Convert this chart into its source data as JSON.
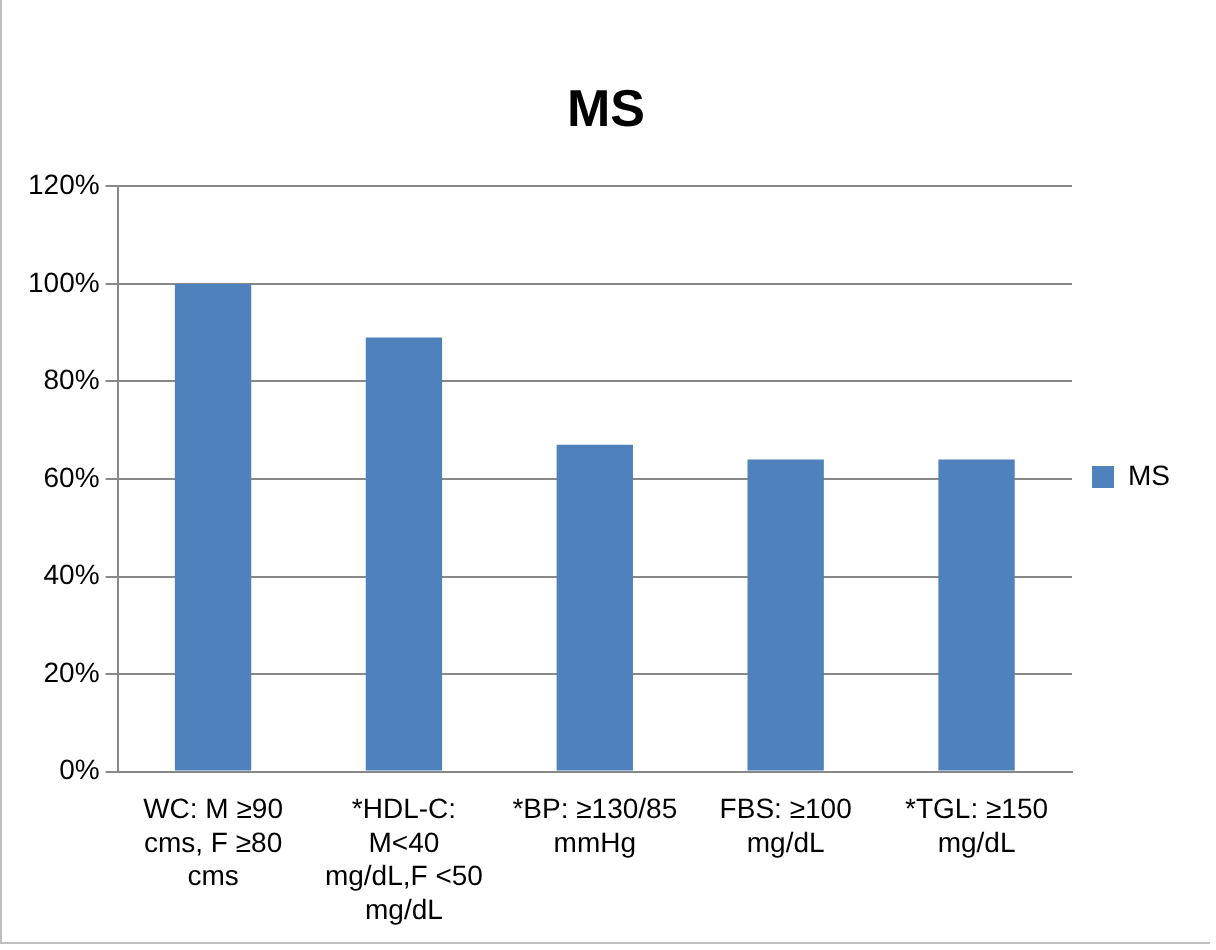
{
  "chart_data": {
    "type": "bar",
    "title": "MS",
    "categories": [
      "WC: M ≥90 cms, F ≥80 cms",
      "*HDL-C: M<40 mg/dL,F <50 mg/dL",
      "*BP: ≥130/85 mmHg",
      "FBS: ≥100 mg/dL",
      "*TGL: ≥150 mg/dL"
    ],
    "series": [
      {
        "name": "MS",
        "color": "#4f81bd",
        "values": [
          100,
          89,
          67,
          64,
          64
        ]
      }
    ],
    "ylim": [
      0,
      120
    ],
    "yticks": [
      {
        "value": 0,
        "label": "0%"
      },
      {
        "value": 20,
        "label": "20%"
      },
      {
        "value": 40,
        "label": "40%"
      },
      {
        "value": 60,
        "label": "60%"
      },
      {
        "value": 80,
        "label": "80%"
      },
      {
        "value": 100,
        "label": "100%"
      },
      {
        "value": 120,
        "label": "120%"
      }
    ],
    "grid": "y",
    "legend": "right"
  }
}
